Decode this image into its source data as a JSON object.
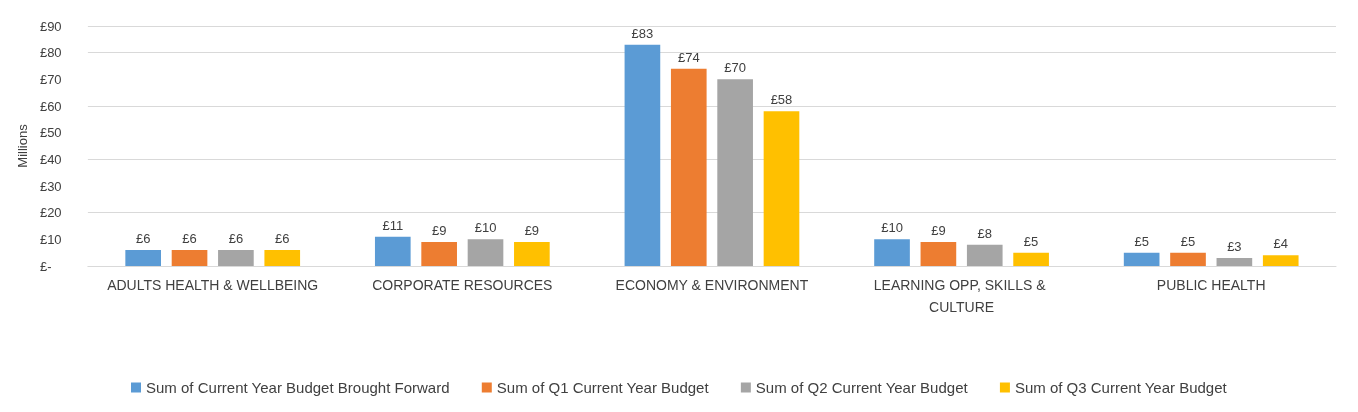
{
  "chart_data": {
    "type": "bar",
    "ylabel": "Millions",
    "categories": [
      "ADULTS HEALTH & WELLBEING",
      "CORPORATE RESOURCES",
      "ECONOMY & ENVIRONMENT",
      "LEARNING OPP, SKILLS & CULTURE",
      "PUBLIC HEALTH"
    ],
    "series": [
      {
        "name": "Sum of Current Year Budget Brought Forward",
        "color": "#5b9bd5",
        "values": [
          6,
          11,
          83,
          10,
          5
        ],
        "value_labels": [
          "£6",
          "£11",
          "£83",
          "£10",
          "£5"
        ]
      },
      {
        "name": "Sum of Q1 Current Year Budget",
        "color": "#ed7d31",
        "values": [
          6,
          9,
          74,
          9,
          5
        ],
        "value_labels": [
          "£6",
          "£9",
          "£74",
          "£9",
          "£5"
        ]
      },
      {
        "name": "Sum of Q2 Current Year Budget",
        "color": "#a5a5a5",
        "values": [
          6,
          10,
          70,
          8,
          3
        ],
        "value_labels": [
          "£6",
          "£10",
          "£70",
          "£8",
          "£3"
        ]
      },
      {
        "name": "Sum of Q3 Current Year Budget",
        "color": "#ffc000",
        "values": [
          6,
          9,
          58,
          5,
          4
        ],
        "value_labels": [
          "£6",
          "£9",
          "£58",
          "£5",
          "£4"
        ]
      }
    ],
    "ylim": [
      0,
      90
    ],
    "yticks": [
      {
        "value": 0,
        "label": "£-"
      },
      {
        "value": 10,
        "label": "£10"
      },
      {
        "value": 20,
        "label": "£20"
      },
      {
        "value": 30,
        "label": "£30"
      },
      {
        "value": 40,
        "label": "£40"
      },
      {
        "value": 50,
        "label": "£50"
      },
      {
        "value": 60,
        "label": "£60"
      },
      {
        "value": 70,
        "label": "£70"
      },
      {
        "value": 80,
        "label": "£80"
      },
      {
        "value": 90,
        "label": "£90"
      }
    ],
    "grid": "y",
    "legend": "bottom"
  }
}
